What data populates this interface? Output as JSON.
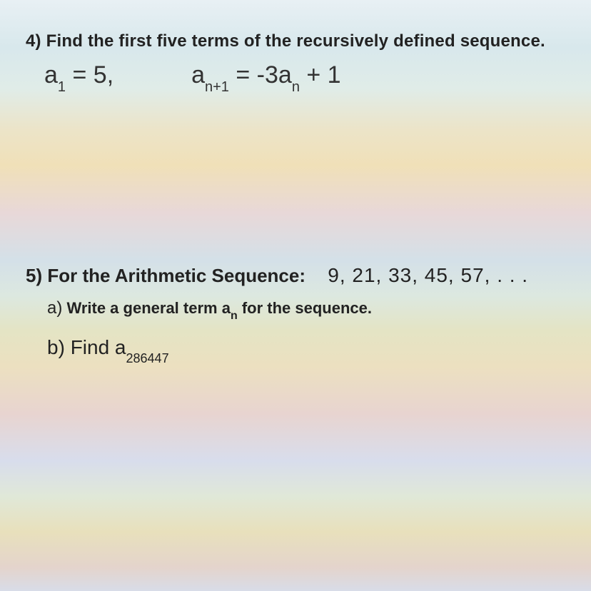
{
  "problem4": {
    "number": "4)",
    "prompt": "Find the first five terms of the recursively defined sequence.",
    "eq1_a": "a",
    "eq1_sub": "1",
    "eq1_rest": " = 5,",
    "eq2_a1": "a",
    "eq2_sub1": "n+1",
    "eq2_mid": " = -3a",
    "eq2_sub2": "n",
    "eq2_end": " + 1"
  },
  "problem5": {
    "number": "5)",
    "intro": "For the Arithmetic Sequence:",
    "sequence": "9, 21, 33, 45, 57, . . .",
    "a_label": "a)",
    "a_text_1": "Write a general term a",
    "a_sub": "n",
    "a_text_2": " for the sequence.",
    "b_label": "b)",
    "b_text": "Find a",
    "b_sub": "286447"
  }
}
